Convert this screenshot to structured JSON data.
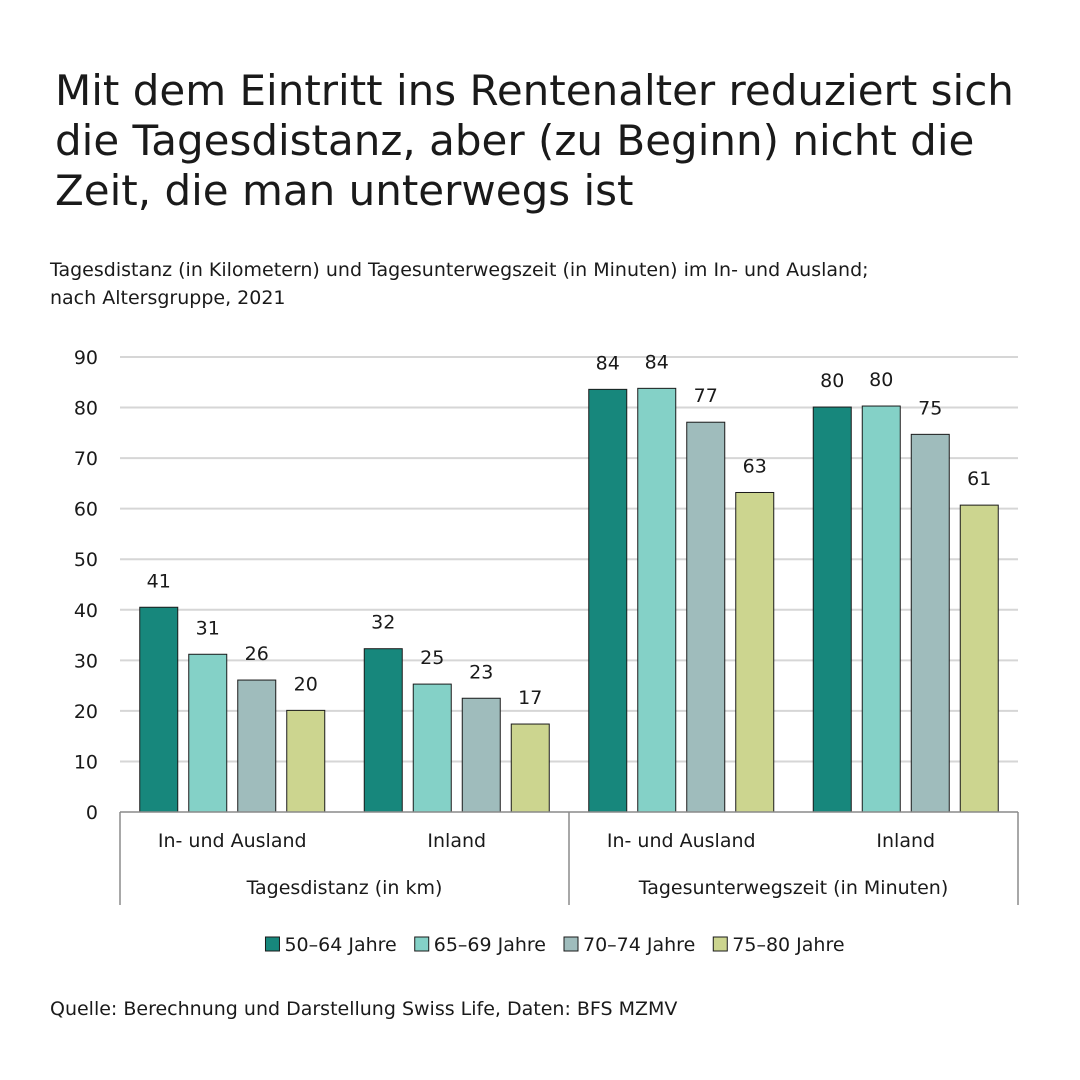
{
  "title": "Mit dem Eintritt ins Rentenalter reduziert sich die Tagesdistanz, aber (zu Beginn) nicht die Zeit, die man unterwegs ist",
  "subtitle_line1": "Tagesdistanz (in Kilometern) und Tagesunterwegszeit (in Minuten) im In- und Ausland;",
  "subtitle_line2": "nach Altersgruppe, 2021",
  "source": "Quelle: Berechnung und Darstellung Swiss Life, Daten: BFS MZMV",
  "chart_data": {
    "type": "bar",
    "title": "Tagesdistanz (in Kilometern) und Tagesunterwegszeit (in Minuten) im In- und Ausland; nach Altersgruppe, 2021",
    "ylim": [
      0,
      90
    ],
    "yticks": [
      0,
      10,
      20,
      30,
      40,
      50,
      60,
      70,
      80,
      90
    ],
    "grid": true,
    "legend_position": "bottom",
    "groups": [
      "Tagesdistanz (in km)",
      "Tagesunterwegszeit (in Minuten)"
    ],
    "categories": [
      "In- und Ausland",
      "Inland",
      "In- und Ausland",
      "Inland"
    ],
    "category_group": [
      0,
      0,
      1,
      1
    ],
    "series": [
      {
        "name": "50–64 Jahre",
        "color": "#17877c",
        "values": [
          40.5,
          32.3,
          83.6,
          80.1
        ],
        "labels": [
          "41",
          "32",
          "84",
          "80"
        ]
      },
      {
        "name": "65–69 Jahre",
        "color": "#84d1c7",
        "values": [
          31.2,
          25.3,
          83.8,
          80.3
        ],
        "labels": [
          "31",
          "25",
          "84",
          "80"
        ]
      },
      {
        "name": "70–74 Jahre",
        "color": "#9fbcbc",
        "values": [
          26.1,
          22.5,
          77.1,
          74.7
        ],
        "labels": [
          "26",
          "23",
          "77",
          "75"
        ]
      },
      {
        "name": "75–80 Jahre",
        "color": "#ccd58f",
        "values": [
          20.1,
          17.4,
          63.2,
          60.7
        ],
        "labels": [
          "20",
          "17",
          "63",
          "61"
        ]
      }
    ]
  }
}
